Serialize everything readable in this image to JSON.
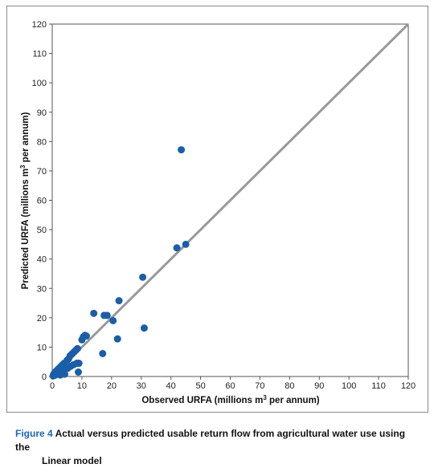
{
  "chart_data": {
    "type": "scatter",
    "title": "",
    "xlabel": {
      "pre": "Observed URFA (millions m",
      "sup": "3",
      "post": " per annum)"
    },
    "ylabel": {
      "pre": "Predicted URFA (millions m",
      "sup": "3",
      "post": " per annum)"
    },
    "xlim": [
      0,
      120
    ],
    "ylim": [
      0,
      120
    ],
    "xticks": [
      "0",
      "10",
      "20",
      "30",
      "40",
      "50",
      "60",
      "70",
      "80",
      "90",
      "100",
      "110",
      "120"
    ],
    "yticks": [
      "0",
      "10",
      "20",
      "30",
      "40",
      "50",
      "60",
      "70",
      "80",
      "90",
      "100",
      "110",
      "120"
    ],
    "grid": false,
    "legend": "none",
    "point_color": "#1a5ea8",
    "line_color": "#999999",
    "reference_line": {
      "from": [
        0,
        0
      ],
      "to": [
        120,
        120
      ]
    },
    "points": [
      [
        0.3,
        0.2
      ],
      [
        0.5,
        0.8
      ],
      [
        0.8,
        0.4
      ],
      [
        1.0,
        1.5
      ],
      [
        1.2,
        0.6
      ],
      [
        1.5,
        2.0
      ],
      [
        1.7,
        1.0
      ],
      [
        2.0,
        2.5
      ],
      [
        2.2,
        1.2
      ],
      [
        2.5,
        3.0
      ],
      [
        2.7,
        0.5
      ],
      [
        3.0,
        3.5
      ],
      [
        3.2,
        1.8
      ],
      [
        3.5,
        4.0
      ],
      [
        3.8,
        2.2
      ],
      [
        4.0,
        4.5
      ],
      [
        4.2,
        0.8
      ],
      [
        4.5,
        3.2
      ],
      [
        5.0,
        5.5
      ],
      [
        5.2,
        2.8
      ],
      [
        5.5,
        6.0
      ],
      [
        6.0,
        7.0
      ],
      [
        6.2,
        3.5
      ],
      [
        6.5,
        7.5
      ],
      [
        7.0,
        8.0
      ],
      [
        7.2,
        4.0
      ],
      [
        7.5,
        8.5
      ],
      [
        8.0,
        9.0
      ],
      [
        8.3,
        4.5
      ],
      [
        8.5,
        9.5
      ],
      [
        8.8,
        1.5
      ],
      [
        9.0,
        4.5
      ],
      [
        10.0,
        12.5
      ],
      [
        10.5,
        13.5
      ],
      [
        11.0,
        14.0
      ],
      [
        11.5,
        13.8
      ],
      [
        14.0,
        21.5
      ],
      [
        17.0,
        7.8
      ],
      [
        17.5,
        20.8
      ],
      [
        18.5,
        20.8
      ],
      [
        20.5,
        19.0
      ],
      [
        22.0,
        12.8
      ],
      [
        22.5,
        25.8
      ],
      [
        30.5,
        33.8
      ],
      [
        31.0,
        16.5
      ],
      [
        42.0,
        43.8
      ],
      [
        43.5,
        77.2
      ],
      [
        45.0,
        45.0
      ]
    ]
  },
  "caption": {
    "label": "Figure 4",
    "line1": "Actual versus predicted usable return flow from agricultural water use using the",
    "line2": "Linear model"
  }
}
